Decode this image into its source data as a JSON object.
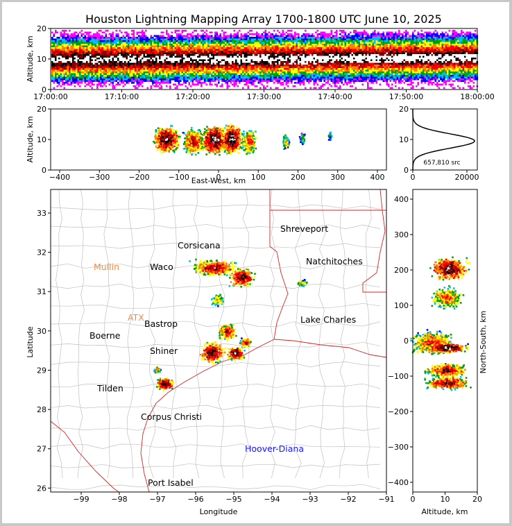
{
  "title": "Houston Lightning Mapping Array 1700-1800 UTC June 10, 2025",
  "time_panel": {
    "ylabel": "Altitude, km",
    "yticks": [
      "0",
      "10",
      "20"
    ],
    "xticks": [
      "17:00:00",
      "17:10:00",
      "17:20:00",
      "17:30:00",
      "17:40:00",
      "17:50:00",
      "18:00:00"
    ]
  },
  "ew_panel": {
    "ylabel": "Altitude, km",
    "xlabel": "East-West, km",
    "yticks": [
      "0",
      "10",
      "20"
    ],
    "xticks": [
      "−400",
      "−300",
      "−200",
      "−100",
      "0",
      "100",
      "200",
      "300",
      "400"
    ]
  },
  "hist_panel": {
    "count_label": "657,810 src",
    "xticks": [
      "0",
      "20000"
    ],
    "yticks": [
      "0",
      "10",
      "20"
    ]
  },
  "map_panel": {
    "xlabel": "Longitude",
    "ylabel": "Latitude",
    "xticks": [
      "−99",
      "−98",
      "−97",
      "−96",
      "−95",
      "−94",
      "−93",
      "−92",
      "−91"
    ],
    "yticks": [
      "26",
      "27",
      "28",
      "29",
      "30",
      "31",
      "32",
      "33"
    ]
  },
  "ns_panel": {
    "ylabel": "North-South, km",
    "xlabel": "Altitude, km",
    "yticks": [
      "−400",
      "−300",
      "−200",
      "−100",
      "0",
      "100",
      "200",
      "300",
      "400"
    ],
    "xticks": [
      "0",
      "10",
      "20"
    ]
  },
  "cities": [
    {
      "name": "Shreveport",
      "color": "#000000"
    },
    {
      "name": "Natchitoches",
      "color": "#000000"
    },
    {
      "name": "Lake Charles",
      "color": "#000000"
    },
    {
      "name": "Mullin",
      "color": "#f08a4b"
    },
    {
      "name": "Waco",
      "color": "#000000"
    },
    {
      "name": "Corsicana",
      "color": "#000000"
    },
    {
      "name": "ATX",
      "color": "#f08a4b"
    },
    {
      "name": "Bastrop",
      "color": "#000000"
    },
    {
      "name": "Boerne",
      "color": "#000000"
    },
    {
      "name": "Shiner",
      "color": "#000000"
    },
    {
      "name": "Tilden",
      "color": "#000000"
    },
    {
      "name": "Corpus Christi",
      "color": "#000000"
    },
    {
      "name": "Hoover-Diana",
      "color": "#1a1aff"
    },
    {
      "name": "Port Isabel",
      "color": "#000000"
    }
  ],
  "chart_data": {
    "type": "heatmap",
    "title": "Houston Lightning Mapping Array 1700-1800 UTC June 10, 2025",
    "total_sources": 657810,
    "time_altitude": {
      "xlim": [
        "17:00:00",
        "18:00:00"
      ],
      "ylim": [
        0,
        20
      ],
      "main_altitude_km": [
        8,
        13
      ]
    },
    "ew_altitude": {
      "xlim": [
        -420,
        420
      ],
      "ylim": [
        0,
        20
      ],
      "cells_km": [
        -150,
        -50,
        0,
        50,
        150
      ]
    },
    "altitude_histogram": {
      "xlim": [
        0,
        24000
      ],
      "ylim": [
        0,
        20
      ],
      "peak_altitude_km": 9.5,
      "peak_count": 23000
    },
    "plan_view": {
      "xlim": [
        -99.8,
        -91
      ],
      "ylim": [
        25.9,
        33.6
      ]
    },
    "ns_altitude": {
      "xlim": [
        0,
        20
      ],
      "ylim": [
        -420,
        420
      ],
      "cells_km": [
        210,
        160,
        120,
        20,
        -30,
        -80,
        -120
      ]
    },
    "color_scale": [
      "#ff00ff",
      "#0000ff",
      "#00bfff",
      "#00a000",
      "#ffff00",
      "#ff7f00",
      "#ff0000",
      "#8b0000",
      "#000000",
      "#ffffff"
    ]
  }
}
